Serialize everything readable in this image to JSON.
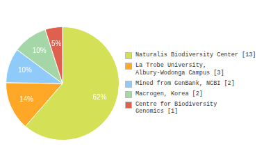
{
  "chart_data": {
    "type": "pie",
    "categories": [
      "Naturalis Biodiversity Center [13]",
      "La Trobe University,\nAlbury-Wodonga Campus [3]",
      "Mined from GenBank, NCBI [2]",
      "Macrogen, Korea [2]",
      "Centre for Biodiversity\nGenomics [1]"
    ],
    "values": [
      62,
      14,
      10,
      10,
      5
    ],
    "value_labels": [
      "62%",
      "14%",
      "10%",
      "10%",
      "5%"
    ],
    "colors": [
      "#d4e157",
      "#ffa726",
      "#90caf9",
      "#a5d6a7",
      "#e06050"
    ],
    "data_labels": true,
    "legend": "right"
  }
}
